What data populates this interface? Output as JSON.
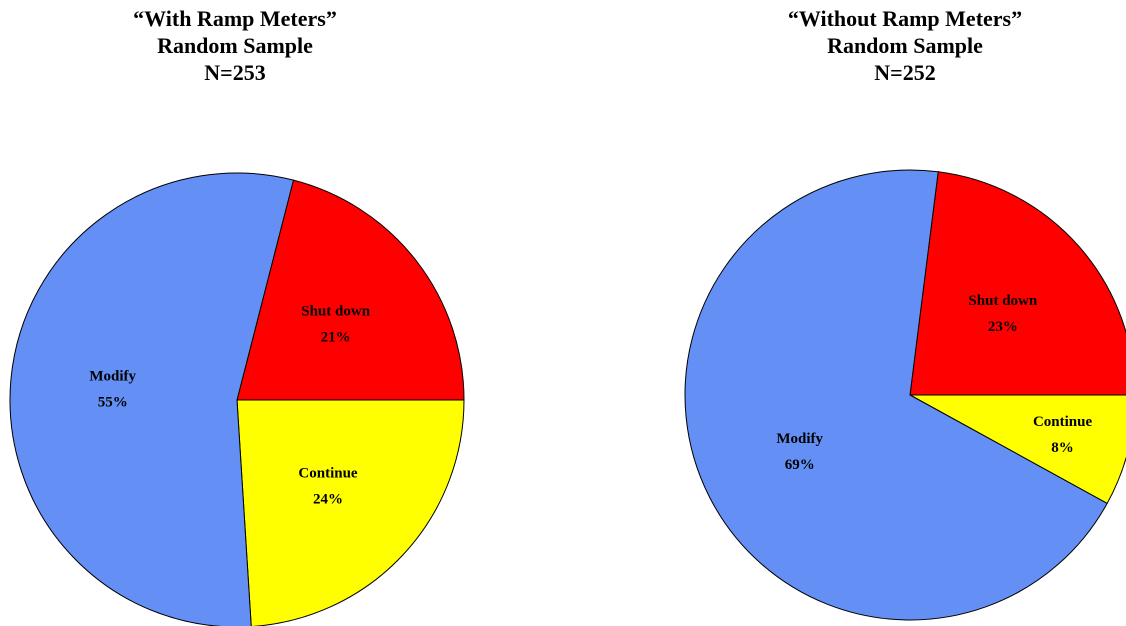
{
  "chart_data": [
    {
      "type": "pie",
      "title": [
        "“With Ramp Meters”",
        "Random Sample",
        "N=253"
      ],
      "categories": [
        "Shut down",
        "Continue",
        "Modify"
      ],
      "values": [
        21,
        24,
        55
      ],
      "value_labels": [
        "21%",
        "24%",
        "55%"
      ],
      "colors": [
        "#ff0000",
        "#ffff00",
        "#6490f6"
      ]
    },
    {
      "type": "pie",
      "title": [
        "“Without Ramp Meters”",
        "Random Sample",
        "N=252"
      ],
      "categories": [
        "Shut down",
        "Continue",
        "Modify"
      ],
      "values": [
        23,
        8,
        69
      ],
      "value_labels": [
        "23%",
        "8%",
        "69%"
      ],
      "colors": [
        "#ff0000",
        "#ffff00",
        "#6490f6"
      ]
    }
  ]
}
